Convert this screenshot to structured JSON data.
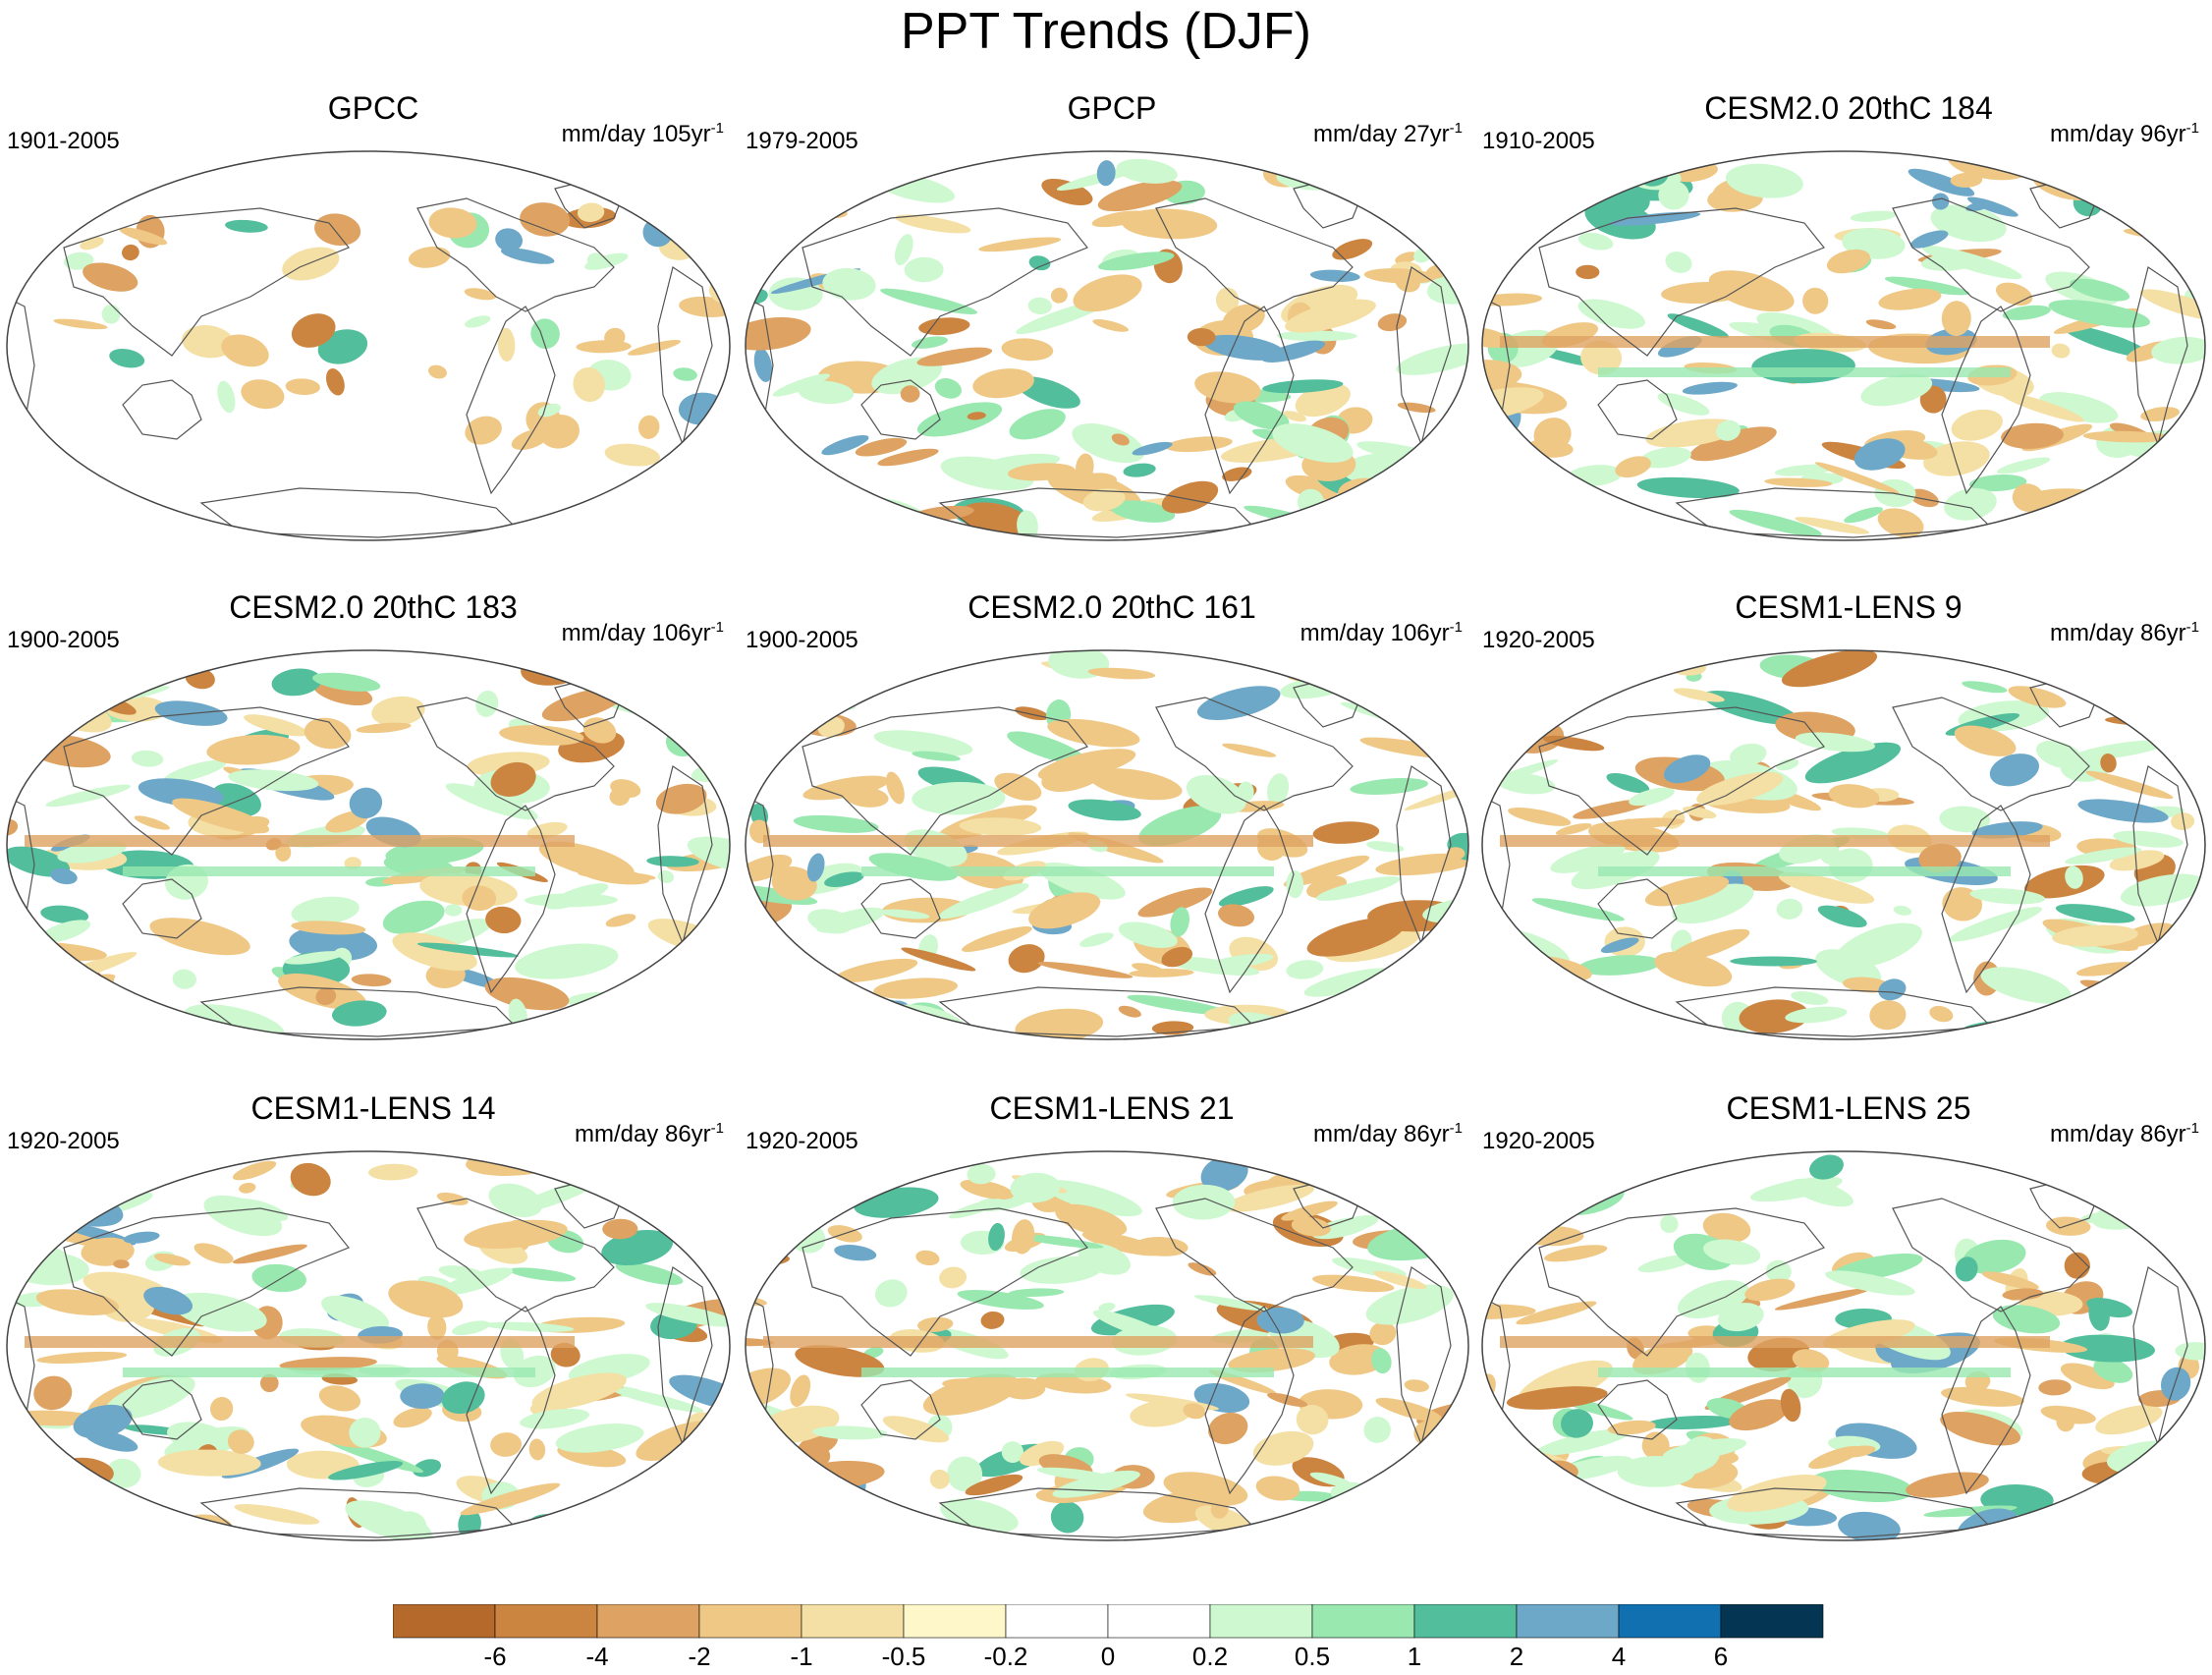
{
  "title": "PPT Trends (DJF)",
  "panels": [
    {
      "name": "GPCC",
      "period": "1901-2005",
      "units": "mm/day 105yr",
      "sup": "-1"
    },
    {
      "name": "GPCP",
      "period": "1979-2005",
      "units": "mm/day 27yr",
      "sup": "-1"
    },
    {
      "name": "CESM2.0 20thC 184",
      "period": "1910-2005",
      "units": "mm/day 96yr",
      "sup": "-1"
    },
    {
      "name": "CESM2.0 20thC 183",
      "period": "1900-2005",
      "units": "mm/day 106yr",
      "sup": "-1"
    },
    {
      "name": "CESM2.0 20thC 161",
      "period": "1900-2005",
      "units": "mm/day 106yr",
      "sup": "-1"
    },
    {
      "name": "CESM1-LENS 9",
      "period": "1920-2005",
      "units": "mm/day 86yr",
      "sup": "-1"
    },
    {
      "name": "CESM1-LENS 14",
      "period": "1920-2005",
      "units": "mm/day 86yr",
      "sup": "-1"
    },
    {
      "name": "CESM1-LENS 21",
      "period": "1920-2005",
      "units": "mm/day 86yr",
      "sup": "-1"
    },
    {
      "name": "CESM1-LENS 25",
      "period": "1920-2005",
      "units": "mm/day 86yr",
      "sup": "-1"
    }
  ],
  "colorbar": {
    "labels": [
      "-6",
      "-4",
      "-2",
      "-1",
      "-0.5",
      "-0.2",
      "0",
      "0.2",
      "0.5",
      "1",
      "2",
      "4",
      "6"
    ],
    "colors": [
      "#b5692a",
      "#cc8540",
      "#dea262",
      "#efc886",
      "#f4e0a4",
      "#fdf7c9",
      "#ffffff",
      "#ffffff",
      "#cdf8d0",
      "#98e8b0",
      "#52be9c",
      "#6ea8c8",
      "#1170b0",
      "#043654"
    ]
  }
}
